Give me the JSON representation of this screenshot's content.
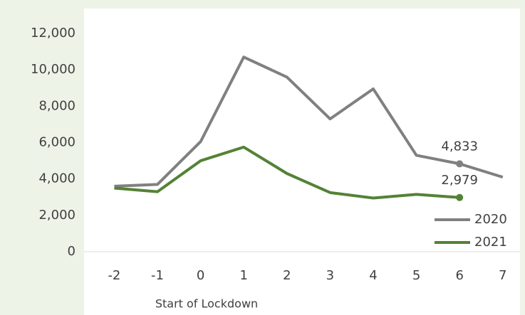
{
  "chart_data": {
    "type": "line",
    "xlabel": "Start of Lockdown",
    "x": [
      -2,
      -1,
      0,
      1,
      2,
      3,
      4,
      5,
      6,
      7
    ],
    "series": [
      {
        "name": "2020",
        "color": "#808080",
        "values": [
          3600,
          3700,
          6050,
          10700,
          9600,
          7300,
          8950,
          5300,
          4833,
          4100
        ],
        "value_labels": [
          null,
          null,
          null,
          null,
          null,
          null,
          null,
          null,
          "4,833",
          null
        ]
      },
      {
        "name": "2021",
        "color": "#548235",
        "values": [
          3500,
          3300,
          5000,
          5750,
          4300,
          3250,
          2950,
          3150,
          2979,
          null
        ],
        "value_labels": [
          null,
          null,
          null,
          null,
          null,
          null,
          null,
          null,
          "2,979",
          null
        ]
      }
    ],
    "xlim": [
      -2.7,
      7.4
    ],
    "xticks": [
      -2,
      -1,
      0,
      1,
      2,
      3,
      4,
      5,
      6,
      7
    ],
    "ylim": [
      0,
      12000
    ],
    "yticks": [
      0,
      {
        "value": 2000,
        "label": "2,000"
      },
      {
        "value": 4000,
        "label": "4,000"
      },
      {
        "value": 6000,
        "label": "6,000"
      },
      {
        "value": 8000,
        "label": "8,000"
      },
      {
        "value": 10000,
        "label": "10,000"
      },
      {
        "value": 12000,
        "label": "12,000"
      }
    ],
    "legend": "lower right"
  }
}
